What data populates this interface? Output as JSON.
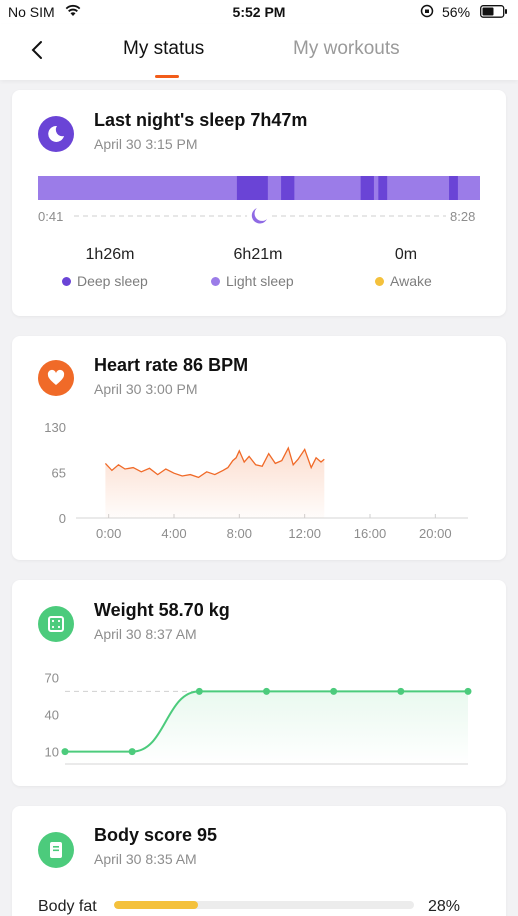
{
  "status_bar": {
    "carrier": "No SIM",
    "time": "5:52 PM",
    "battery": "56%"
  },
  "nav": {
    "tabs": [
      {
        "label": "My status",
        "active": true
      },
      {
        "label": "My workouts",
        "active": false
      }
    ],
    "accent": "#f25c19"
  },
  "sleep": {
    "title": "Last night's sleep 7h47m",
    "date": "April 30 3:15 PM",
    "start": "0:41",
    "end": "8:28",
    "stats": [
      {
        "value": "1h26m",
        "label": "Deep sleep",
        "color": "#6a44d6"
      },
      {
        "value": "6h21m",
        "label": "Light sleep",
        "color": "#9b7ce8"
      },
      {
        "value": "0m",
        "label": "Awake",
        "color": "#f4c13c"
      }
    ],
    "deep_segments_fraction": [
      [
        0.45,
        0.52
      ],
      [
        0.55,
        0.58
      ],
      [
        0.73,
        0.76
      ],
      [
        0.77,
        0.79
      ],
      [
        0.93,
        0.95
      ]
    ]
  },
  "heart": {
    "title": "Heart rate 86  BPM",
    "date": "April 30 3:00 PM",
    "color": "#f06a28"
  },
  "weight": {
    "title": "Weight 58.70 kg",
    "date": "April 30 8:37 AM",
    "color": "#4ccb7c"
  },
  "body": {
    "title": "Body score 95",
    "date": "April 30 8:35 AM",
    "metrics": [
      {
        "label": "Body fat",
        "value": "28%",
        "fraction": 0.28,
        "color": "#f4c13c"
      }
    ]
  },
  "chart_data": [
    {
      "type": "area",
      "name": "Heart rate",
      "yticks": [
        130,
        65,
        0
      ],
      "ylim": [
        0,
        130
      ],
      "xticks": [
        "0:00",
        "4:00",
        "8:00",
        "12:00",
        "16:00",
        "20:00"
      ],
      "xlim": [
        -2,
        22
      ],
      "x": [
        -0.2,
        0.2,
        0.6,
        1.0,
        1.5,
        2.0,
        2.5,
        3.0,
        3.5,
        4.0,
        4.5,
        5.0,
        5.5,
        6.0,
        6.5,
        7.0,
        7.3,
        7.6,
        7.8,
        8.0,
        8.3,
        8.6,
        9.0,
        9.4,
        9.8,
        10.2,
        10.6,
        11.0,
        11.3,
        11.6,
        12.0,
        12.4,
        12.7,
        13.0,
        13.2
      ],
      "y": [
        78,
        68,
        76,
        70,
        72,
        66,
        71,
        62,
        70,
        64,
        60,
        62,
        58,
        66,
        62,
        68,
        72,
        82,
        86,
        96,
        80,
        88,
        76,
        74,
        92,
        78,
        82,
        100,
        76,
        84,
        98,
        72,
        86,
        80,
        84
      ]
    },
    {
      "type": "line",
      "name": "Weight",
      "yticks": [
        70,
        40,
        10
      ],
      "ylim": [
        0,
        80
      ],
      "x": [
        0,
        1,
        2,
        3,
        4,
        5,
        6
      ],
      "y": [
        10,
        10,
        58.7,
        58.7,
        58.7,
        58.7,
        58.7
      ],
      "reference_line": 58.7
    }
  ]
}
